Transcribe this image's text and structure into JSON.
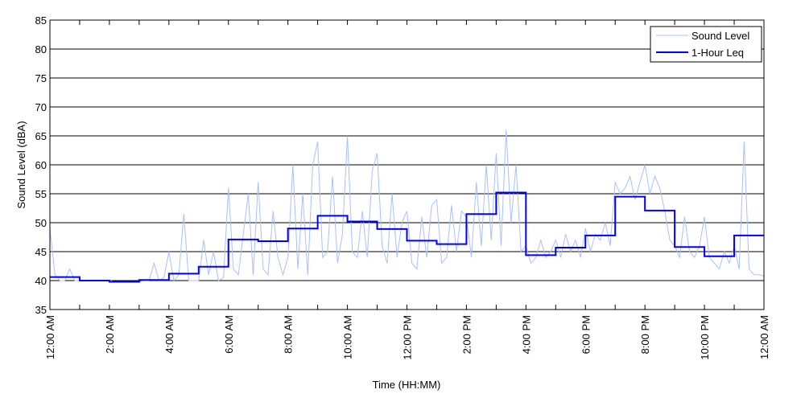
{
  "chart_data": {
    "type": "line",
    "xlabel": "Time (HH:MM)",
    "ylabel": "Sound Level (dBA)",
    "ylim": [
      35,
      85
    ],
    "yticks": [
      35,
      40,
      45,
      50,
      55,
      60,
      65,
      70,
      75,
      80,
      85
    ],
    "xlim_hours": [
      0,
      24
    ],
    "xtick_labels": [
      "12:00 AM",
      "2:00 AM",
      "4:00 AM",
      "6:00 AM",
      "8:00 AM",
      "10:00 AM",
      "12:00 PM",
      "2:00 PM",
      "4:00 PM",
      "6:00 PM",
      "8:00 PM",
      "10:00 PM",
      "12:00 AM"
    ],
    "grid": "horizontal",
    "legend": {
      "placement": "top-right",
      "entries": [
        "Sound Level",
        "1-Hour Leq"
      ]
    },
    "series": [
      {
        "name": "Sound Level",
        "color": "#a8c0ff",
        "x_step_minutes": 10,
        "values": [
          49,
          41,
          40,
          40,
          42,
          40,
          40,
          40,
          40,
          40,
          40,
          40,
          40,
          39.8,
          39.8,
          39.8,
          39.8,
          39.8,
          39.8,
          40,
          40,
          43,
          40,
          40.5,
          45,
          40,
          41,
          51.5,
          40,
          40,
          40,
          47,
          41,
          45,
          40,
          40.5,
          56,
          42,
          41,
          48,
          55,
          41,
          57,
          42,
          41,
          52,
          44,
          41,
          44,
          60,
          42,
          55,
          41,
          60,
          64,
          44,
          45,
          58,
          43,
          48,
          65,
          45,
          44,
          52,
          44,
          59,
          62,
          46,
          43,
          55,
          44,
          50,
          52,
          43,
          42,
          51,
          44,
          53,
          54,
          43,
          44,
          53,
          45,
          52,
          51,
          44,
          57,
          46,
          60,
          47,
          62,
          46,
          66,
          50,
          60,
          45,
          46,
          43,
          44,
          47,
          44,
          45,
          47,
          44,
          48,
          45,
          47,
          44,
          49,
          45,
          48,
          47,
          50,
          46,
          57,
          55,
          56,
          58,
          54,
          57,
          60,
          55,
          58,
          56,
          52,
          47,
          46,
          44,
          51,
          45,
          44,
          46,
          51,
          44,
          43,
          42,
          45,
          43,
          46,
          42,
          64,
          42,
          41,
          41,
          40.8
        ]
      },
      {
        "name": "1-Hour Leq",
        "color": "#0000ff",
        "type": "step",
        "hours": [
          0,
          1,
          2,
          3,
          4,
          5,
          6,
          7,
          8,
          9,
          10,
          11,
          12,
          13,
          14,
          15,
          16,
          17,
          18,
          19,
          20,
          21,
          22,
          23
        ],
        "values": [
          40.6,
          40.0,
          39.8,
          40.1,
          41.2,
          42.4,
          47.1,
          46.8,
          49.0,
          51.2,
          50.2,
          48.9,
          46.9,
          46.3,
          51.5,
          55.2,
          44.4,
          45.7,
          47.8,
          54.5,
          52.1,
          45.8,
          44.2,
          47.8
        ]
      }
    ]
  }
}
